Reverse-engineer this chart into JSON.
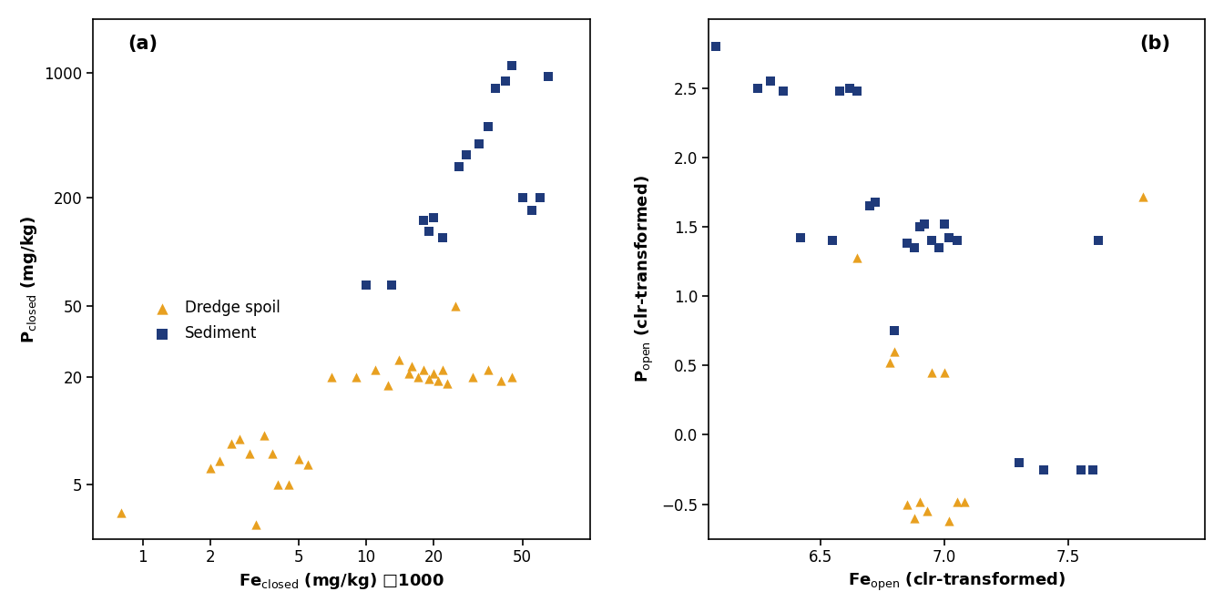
{
  "panel_a": {
    "dredge_x": [
      0.8,
      2.0,
      2.2,
      2.5,
      2.7,
      3.0,
      3.2,
      3.5,
      3.8,
      4.0,
      4.5,
      5.0,
      5.5,
      7.0,
      9.0,
      11.0,
      12.5,
      14.0,
      15.5,
      16.0,
      17.0,
      18.0,
      19.0,
      20.0,
      21.0,
      22.0,
      23.0,
      25.0,
      30.0,
      35.0,
      40.0,
      45.0
    ],
    "dredge_y": [
      3.5,
      6.2,
      6.8,
      8.5,
      9.0,
      7.5,
      3.0,
      9.5,
      7.5,
      5.0,
      5.0,
      7.0,
      6.5,
      20.0,
      20.0,
      22.0,
      18.0,
      25.0,
      21.0,
      23.0,
      20.0,
      22.0,
      19.5,
      21.0,
      19.0,
      22.0,
      18.5,
      50.0,
      20.0,
      22.0,
      19.0,
      20.0
    ],
    "sediment_x": [
      10.0,
      13.0,
      18.0,
      19.0,
      20.0,
      22.0,
      26.0,
      28.0,
      32.0,
      35.0,
      38.0,
      42.0,
      45.0,
      50.0,
      55.0,
      60.0,
      65.0
    ],
    "sediment_y": [
      65.0,
      65.0,
      150.0,
      130.0,
      155.0,
      120.0,
      300.0,
      350.0,
      400.0,
      500.0,
      820.0,
      900.0,
      1100.0,
      200.0,
      170.0,
      200.0,
      950.0
    ]
  },
  "panel_b": {
    "dredge_x": [
      6.65,
      6.78,
      6.8,
      6.85,
      6.88,
      6.9,
      6.93,
      6.95,
      7.0,
      7.02,
      7.05,
      7.08,
      7.8
    ],
    "dredge_y": [
      1.28,
      0.52,
      0.6,
      -0.5,
      -0.6,
      -0.48,
      -0.55,
      0.45,
      0.45,
      -0.62,
      -0.48,
      -0.48,
      1.72
    ],
    "sediment_x": [
      6.08,
      6.25,
      6.3,
      6.35,
      6.42,
      6.55,
      6.58,
      6.62,
      6.65,
      6.7,
      6.72,
      6.8,
      6.85,
      6.88,
      6.9,
      6.92,
      6.95,
      6.98,
      7.0,
      7.02,
      7.05,
      7.3,
      7.4,
      7.55,
      7.6,
      7.62
    ],
    "sediment_y": [
      2.8,
      2.5,
      2.55,
      2.48,
      1.42,
      1.4,
      2.48,
      2.5,
      2.48,
      1.65,
      1.68,
      0.75,
      1.38,
      1.35,
      1.5,
      1.52,
      1.4,
      1.35,
      1.52,
      1.42,
      1.4,
      -0.2,
      -0.25,
      -0.25,
      -0.25,
      1.4
    ]
  },
  "colors": {
    "dredge": "#E8A020",
    "sediment": "#1F3A7A"
  },
  "panel_a_xlabel": "Fe$_\\mathregular{closed}$ (mg/kg) □1000",
  "panel_a_ylabel": "P$_\\mathregular{closed}$ (mg/kg)",
  "panel_b_xlabel": "Fe$_\\mathregular{open}$ (clr-transformed)",
  "panel_b_ylabel": "P$_\\mathregular{open}$ (clr-transformed)",
  "marker_size": 55,
  "background_color": "#ffffff"
}
